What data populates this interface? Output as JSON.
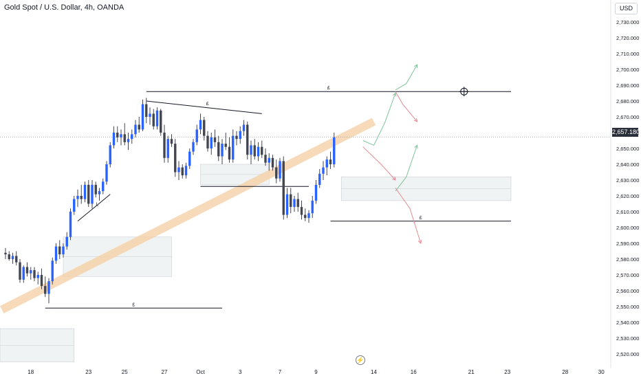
{
  "header": {
    "title": "Gold Spot / U.S. Dollar, 4h, OANDA",
    "currency": "USD",
    "last_price": "2,657.180"
  },
  "icons": {
    "bolt": "⚡"
  },
  "colors": {
    "up": "#2962ff",
    "down": "#434651",
    "wick": "#434651",
    "trendline": "#131722",
    "projection_up": "#7dc49a",
    "projection_down": "#e58a93",
    "channel": "#f6d2a8",
    "zone_fill": "#f0f3f3",
    "zone_border": "#c9cdd3"
  },
  "chart_data": {
    "type": "candlestick",
    "title": "Gold Spot / U.S. Dollar, 4h, OANDA",
    "ylabel": "USD",
    "ylim": [
      2515,
      2735
    ],
    "yticks": [
      2520,
      2530,
      2540,
      2550,
      2560,
      2570,
      2580,
      2590,
      2600,
      2610,
      2620,
      2630,
      2640,
      2650,
      2660,
      2670,
      2680,
      2690,
      2700,
      2710,
      2720,
      2730
    ],
    "ytick_labels": [
      "2,520.000",
      "2,530.000",
      "2,540.000",
      "2,550.000",
      "2,560.000",
      "2,570.000",
      "2,580.000",
      "2,590.000",
      "2,600.000",
      "2,610.000",
      "2,620.000",
      "2,630.000",
      "2,640.000",
      "2,650.000",
      "2,660.000",
      "2,670.000",
      "2,680.000",
      "2,690.000",
      "2,700.000",
      "2,710.000",
      "2,720.000",
      "2,730.000"
    ],
    "xticks": [
      {
        "label": "18",
        "bar": 7
      },
      {
        "label": "23",
        "bar": 23
      },
      {
        "label": "25",
        "bar": 33
      },
      {
        "label": "27",
        "bar": 44
      },
      {
        "label": "Oct",
        "bar": 54
      },
      {
        "label": "3",
        "bar": 65
      },
      {
        "label": "7",
        "bar": 76
      },
      {
        "label": "9",
        "bar": 86
      },
      {
        "label": "14",
        "bar": 102
      },
      {
        "label": "16",
        "bar": 113
      },
      {
        "label": "21",
        "bar": 129
      },
      {
        "label": "23",
        "bar": 139
      },
      {
        "label": "28",
        "bar": 155
      },
      {
        "label": "30",
        "bar": 165
      }
    ],
    "last_price": 2657.18,
    "candles": [
      {
        "o": 2584,
        "h": 2587,
        "l": 2580,
        "c": 2583
      },
      {
        "o": 2583,
        "h": 2585,
        "l": 2579,
        "c": 2580
      },
      {
        "o": 2580,
        "h": 2584,
        "l": 2577,
        "c": 2582
      },
      {
        "o": 2582,
        "h": 2585,
        "l": 2576,
        "c": 2578
      },
      {
        "o": 2578,
        "h": 2580,
        "l": 2565,
        "c": 2567
      },
      {
        "o": 2567,
        "h": 2576,
        "l": 2565,
        "c": 2575
      },
      {
        "o": 2575,
        "h": 2578,
        "l": 2569,
        "c": 2571
      },
      {
        "o": 2571,
        "h": 2575,
        "l": 2567,
        "c": 2573
      },
      {
        "o": 2573,
        "h": 2575,
        "l": 2566,
        "c": 2568
      },
      {
        "o": 2568,
        "h": 2572,
        "l": 2564,
        "c": 2570
      },
      {
        "o": 2570,
        "h": 2574,
        "l": 2561,
        "c": 2563
      },
      {
        "o": 2563,
        "h": 2569,
        "l": 2556,
        "c": 2558
      },
      {
        "o": 2558,
        "h": 2568,
        "l": 2552,
        "c": 2566
      },
      {
        "o": 2566,
        "h": 2581,
        "l": 2564,
        "c": 2579
      },
      {
        "o": 2579,
        "h": 2590,
        "l": 2577,
        "c": 2588
      },
      {
        "o": 2588,
        "h": 2592,
        "l": 2580,
        "c": 2583
      },
      {
        "o": 2583,
        "h": 2590,
        "l": 2581,
        "c": 2588
      },
      {
        "o": 2588,
        "h": 2597,
        "l": 2586,
        "c": 2594
      },
      {
        "o": 2594,
        "h": 2612,
        "l": 2592,
        "c": 2610
      },
      {
        "o": 2610,
        "h": 2620,
        "l": 2608,
        "c": 2618
      },
      {
        "o": 2618,
        "h": 2624,
        "l": 2613,
        "c": 2620
      },
      {
        "o": 2620,
        "h": 2627,
        "l": 2615,
        "c": 2618
      },
      {
        "o": 2618,
        "h": 2629,
        "l": 2616,
        "c": 2627
      },
      {
        "o": 2627,
        "h": 2630,
        "l": 2613,
        "c": 2615
      },
      {
        "o": 2615,
        "h": 2630,
        "l": 2612,
        "c": 2627
      },
      {
        "o": 2627,
        "h": 2629,
        "l": 2619,
        "c": 2621
      },
      {
        "o": 2621,
        "h": 2625,
        "l": 2617,
        "c": 2623
      },
      {
        "o": 2623,
        "h": 2631,
        "l": 2621,
        "c": 2629
      },
      {
        "o": 2629,
        "h": 2642,
        "l": 2627,
        "c": 2640
      },
      {
        "o": 2640,
        "h": 2654,
        "l": 2638,
        "c": 2652
      },
      {
        "o": 2652,
        "h": 2664,
        "l": 2650,
        "c": 2660
      },
      {
        "o": 2660,
        "h": 2664,
        "l": 2654,
        "c": 2657
      },
      {
        "o": 2657,
        "h": 2662,
        "l": 2652,
        "c": 2659
      },
      {
        "o": 2659,
        "h": 2666,
        "l": 2652,
        "c": 2654
      },
      {
        "o": 2654,
        "h": 2660,
        "l": 2649,
        "c": 2656
      },
      {
        "o": 2656,
        "h": 2662,
        "l": 2653,
        "c": 2659
      },
      {
        "o": 2659,
        "h": 2668,
        "l": 2657,
        "c": 2665
      },
      {
        "o": 2665,
        "h": 2670,
        "l": 2660,
        "c": 2662
      },
      {
        "o": 2662,
        "h": 2681,
        "l": 2661,
        "c": 2678
      },
      {
        "o": 2678,
        "h": 2682,
        "l": 2666,
        "c": 2670
      },
      {
        "o": 2670,
        "h": 2676,
        "l": 2665,
        "c": 2672
      },
      {
        "o": 2672,
        "h": 2675,
        "l": 2662,
        "c": 2664
      },
      {
        "o": 2664,
        "h": 2676,
        "l": 2662,
        "c": 2674
      },
      {
        "o": 2674,
        "h": 2675,
        "l": 2658,
        "c": 2660
      },
      {
        "o": 2660,
        "h": 2665,
        "l": 2641,
        "c": 2644
      },
      {
        "o": 2644,
        "h": 2658,
        "l": 2641,
        "c": 2656
      },
      {
        "o": 2656,
        "h": 2659,
        "l": 2651,
        "c": 2653
      },
      {
        "o": 2653,
        "h": 2656,
        "l": 2632,
        "c": 2635
      },
      {
        "o": 2635,
        "h": 2642,
        "l": 2630,
        "c": 2638
      },
      {
        "o": 2638,
        "h": 2640,
        "l": 2631,
        "c": 2633
      },
      {
        "o": 2633,
        "h": 2641,
        "l": 2631,
        "c": 2639
      },
      {
        "o": 2639,
        "h": 2650,
        "l": 2637,
        "c": 2648
      },
      {
        "o": 2648,
        "h": 2656,
        "l": 2646,
        "c": 2654
      },
      {
        "o": 2654,
        "h": 2665,
        "l": 2652,
        "c": 2662
      },
      {
        "o": 2662,
        "h": 2672,
        "l": 2659,
        "c": 2668
      },
      {
        "o": 2668,
        "h": 2670,
        "l": 2655,
        "c": 2658
      },
      {
        "o": 2658,
        "h": 2661,
        "l": 2648,
        "c": 2650
      },
      {
        "o": 2650,
        "h": 2660,
        "l": 2646,
        "c": 2657
      },
      {
        "o": 2657,
        "h": 2662,
        "l": 2651,
        "c": 2654
      },
      {
        "o": 2654,
        "h": 2658,
        "l": 2642,
        "c": 2645
      },
      {
        "o": 2645,
        "h": 2656,
        "l": 2640,
        "c": 2653
      },
      {
        "o": 2653,
        "h": 2660,
        "l": 2649,
        "c": 2651
      },
      {
        "o": 2651,
        "h": 2657,
        "l": 2641,
        "c": 2643
      },
      {
        "o": 2643,
        "h": 2662,
        "l": 2641,
        "c": 2658
      },
      {
        "o": 2658,
        "h": 2661,
        "l": 2652,
        "c": 2656
      },
      {
        "o": 2656,
        "h": 2664,
        "l": 2653,
        "c": 2661
      },
      {
        "o": 2661,
        "h": 2668,
        "l": 2658,
        "c": 2665
      },
      {
        "o": 2665,
        "h": 2667,
        "l": 2643,
        "c": 2646
      },
      {
        "o": 2646,
        "h": 2655,
        "l": 2640,
        "c": 2652
      },
      {
        "o": 2652,
        "h": 2656,
        "l": 2643,
        "c": 2645
      },
      {
        "o": 2645,
        "h": 2654,
        "l": 2642,
        "c": 2651
      },
      {
        "o": 2651,
        "h": 2655,
        "l": 2644,
        "c": 2646
      },
      {
        "o": 2646,
        "h": 2650,
        "l": 2639,
        "c": 2641
      },
      {
        "o": 2641,
        "h": 2647,
        "l": 2636,
        "c": 2644
      },
      {
        "o": 2644,
        "h": 2646,
        "l": 2636,
        "c": 2638
      },
      {
        "o": 2638,
        "h": 2643,
        "l": 2628,
        "c": 2631
      },
      {
        "o": 2631,
        "h": 2644,
        "l": 2629,
        "c": 2642
      },
      {
        "o": 2642,
        "h": 2645,
        "l": 2605,
        "c": 2608
      },
      {
        "o": 2608,
        "h": 2625,
        "l": 2606,
        "c": 2621
      },
      {
        "o": 2621,
        "h": 2625,
        "l": 2609,
        "c": 2613
      },
      {
        "o": 2613,
        "h": 2620,
        "l": 2610,
        "c": 2618
      },
      {
        "o": 2618,
        "h": 2622,
        "l": 2610,
        "c": 2613
      },
      {
        "o": 2613,
        "h": 2617,
        "l": 2605,
        "c": 2608
      },
      {
        "o": 2608,
        "h": 2612,
        "l": 2604,
        "c": 2606
      },
      {
        "o": 2606,
        "h": 2611,
        "l": 2603,
        "c": 2609
      },
      {
        "o": 2609,
        "h": 2620,
        "l": 2606,
        "c": 2617
      },
      {
        "o": 2617,
        "h": 2630,
        "l": 2615,
        "c": 2627
      },
      {
        "o": 2627,
        "h": 2637,
        "l": 2625,
        "c": 2634
      },
      {
        "o": 2634,
        "h": 2642,
        "l": 2630,
        "c": 2638
      },
      {
        "o": 2638,
        "h": 2645,
        "l": 2633,
        "c": 2643
      },
      {
        "o": 2643,
        "h": 2648,
        "l": 2637,
        "c": 2640
      },
      {
        "o": 2640,
        "h": 2660,
        "l": 2638,
        "c": 2657
      }
    ],
    "annotations": {
      "channel": {
        "from": {
          "bar": -1,
          "price": 2548
        },
        "to": {
          "bar": 102,
          "price": 2667
        }
      },
      "zones": [
        {
          "from_bar": -8,
          "to_bar": 19,
          "top": 2536,
          "bottom": 2515
        },
        {
          "from_bar": 16,
          "to_bar": 46,
          "top": 2594,
          "bottom": 2569
        },
        {
          "from_bar": 54,
          "to_bar": 73,
          "top": 2640,
          "bottom": 2627
        },
        {
          "from_bar": 93,
          "to_bar": 140,
          "top": 2632,
          "bottom": 2617
        }
      ],
      "hlines": [
        {
          "from_bar": 39,
          "to_bar": 140,
          "price": 2686,
          "label": "£"
        },
        {
          "from_bar": 11,
          "to_bar": 60,
          "price": 2549,
          "label": "£"
        },
        {
          "from_bar": 54,
          "to_bar": 84,
          "price": 2626,
          "label": ""
        },
        {
          "from_bar": 90,
          "to_bar": 140,
          "price": 2604,
          "label": "£"
        }
      ],
      "trendlines": [
        {
          "from": {
            "bar": 39,
            "price": 2680
          },
          "to": {
            "bar": 71,
            "price": 2672
          },
          "label": "£"
        },
        {
          "from": {
            "bar": 20,
            "price": 2604
          },
          "to": {
            "bar": 29,
            "price": 2621
          },
          "label": "L"
        }
      ],
      "projections": [
        {
          "color": "up",
          "points": [
            [
              99,
              2655
            ],
            [
              102,
              2652
            ],
            [
              105,
              2666
            ],
            [
              108,
              2685
            ]
          ]
        },
        {
          "color": "up",
          "points": [
            [
              108,
              2687
            ],
            [
              111,
              2691
            ],
            [
              114,
              2703
            ]
          ]
        },
        {
          "color": "down",
          "points": [
            [
              108,
              2686
            ],
            [
              110,
              2678
            ],
            [
              114,
              2667
            ]
          ]
        },
        {
          "color": "down",
          "points": [
            [
              99,
              2651
            ],
            [
              104,
              2640
            ],
            [
              108,
              2630
            ]
          ]
        },
        {
          "color": "up",
          "points": [
            [
              108,
              2623
            ],
            [
              111,
              2632
            ],
            [
              114,
              2652
            ]
          ]
        },
        {
          "color": "down",
          "points": [
            [
              108,
              2625
            ],
            [
              112,
              2612
            ],
            [
              115,
              2590
            ]
          ]
        }
      ],
      "crosshair": {
        "bar": 127,
        "price": 2686
      }
    }
  }
}
